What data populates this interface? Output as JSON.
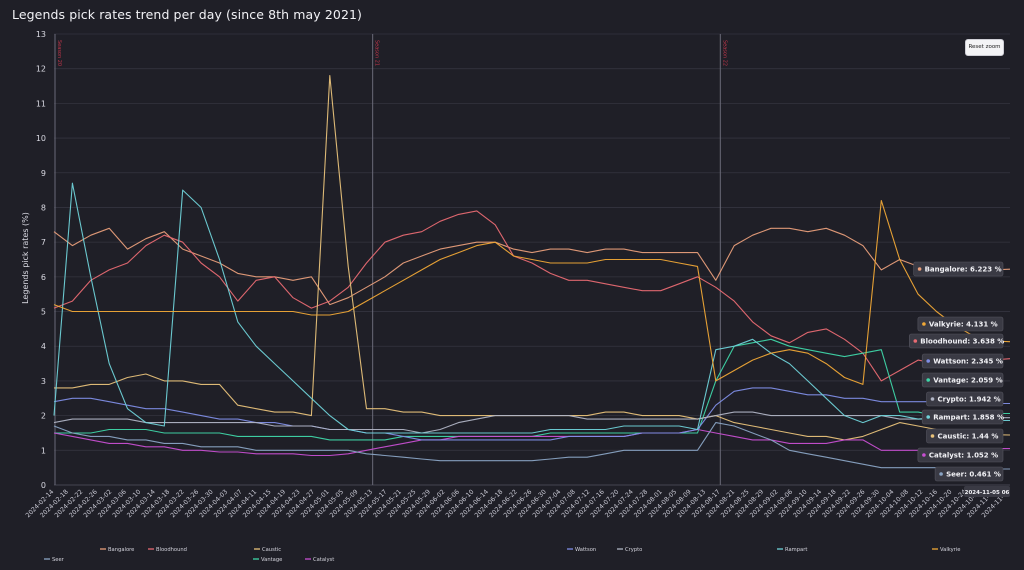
{
  "title": "Legends pick rates trend per day (since 8th may 2021)",
  "reset_zoom_label": "Reset zoom",
  "chart_data": {
    "type": "line",
    "ylabel": "Legends pick rates (%)",
    "ylim": [
      0,
      13
    ],
    "y_ticks": [
      0,
      1,
      2,
      3,
      4,
      5,
      6,
      7,
      8,
      9,
      10,
      11,
      12,
      13
    ],
    "grid": "horizontal",
    "x_ticks": [
      "2024-02-14",
      "2024-02-18",
      "2024-02-22",
      "2024-02-26",
      "2024-03-02",
      "2024-03-06",
      "2024-03-10",
      "2024-03-14",
      "2024-03-18",
      "2024-03-22",
      "2024-03-26",
      "2024-03-30",
      "2024-04-03",
      "2024-04-07",
      "2024-04-11",
      "2024-04-15",
      "2024-04-19",
      "2024-04-23",
      "2024-04-27",
      "2024-05-01",
      "2024-05-05",
      "2024-05-09",
      "2024-05-13",
      "2024-05-17",
      "2024-05-21",
      "2024-05-25",
      "2024-05-29",
      "2024-06-02",
      "2024-06-06",
      "2024-06-10",
      "2024-06-14",
      "2024-06-18",
      "2024-06-22",
      "2024-06-26",
      "2024-06-30",
      "2024-07-04",
      "2024-07-08",
      "2024-07-12",
      "2024-07-16",
      "2024-07-20",
      "2024-07-24",
      "2024-07-28",
      "2024-08-01",
      "2024-08-05",
      "2024-08-09",
      "2024-08-13",
      "2024-08-17",
      "2024-08-21",
      "2024-08-25",
      "2024-08-29",
      "2024-09-02",
      "2024-09-06",
      "2024-09-10",
      "2024-09-14",
      "2024-09-18",
      "2024-09-22",
      "2024-09-26",
      "2024-09-30",
      "2024-10-04",
      "2024-10-08",
      "2024-10-12",
      "2024-10-16",
      "2024-10-20",
      "2024-10-24",
      "2024-10-28",
      "2024-11-01",
      "2024-11-05"
    ],
    "x_hover_label": "2024-11-05 06",
    "season_markers": [
      {
        "label": "Season 20",
        "x_index": 0
      },
      {
        "label": "Season 21",
        "x_index": 22
      },
      {
        "label": "Season 22",
        "x_index": 46
      }
    ],
    "series": [
      {
        "name": "Bangalore",
        "color": "#e89e7a",
        "values": [
          7.3,
          6.9,
          7.2,
          7.4,
          6.8,
          7.1,
          7.3,
          6.8,
          6.6,
          6.4,
          6.1,
          6.0,
          6.0,
          5.9,
          6.0,
          5.2,
          5.4,
          5.7,
          6.0,
          6.4,
          6.6,
          6.8,
          6.9,
          7.0,
          7.0,
          6.8,
          6.7,
          6.8,
          6.8,
          6.7,
          6.8,
          6.8,
          6.7,
          6.7,
          6.7,
          6.7,
          5.9,
          6.9,
          7.2,
          7.4,
          7.4,
          7.3,
          7.4,
          7.2,
          6.9,
          6.2,
          6.5,
          6.3,
          6.3,
          6.2,
          6.2,
          6.2,
          6.22
        ]
      },
      {
        "name": "Bloodhound",
        "color": "#e86a72",
        "values": [
          5.1,
          5.3,
          5.9,
          6.2,
          6.4,
          6.9,
          7.2,
          7.0,
          6.4,
          6.0,
          5.3,
          5.9,
          6.0,
          5.4,
          5.1,
          5.3,
          5.7,
          6.4,
          7.0,
          7.2,
          7.3,
          7.6,
          7.8,
          7.9,
          7.5,
          6.6,
          6.4,
          6.1,
          5.9,
          5.9,
          5.8,
          5.7,
          5.6,
          5.6,
          5.8,
          6.0,
          5.7,
          5.3,
          4.7,
          4.3,
          4.1,
          4.4,
          4.5,
          4.2,
          3.8,
          3.0,
          3.3,
          3.6,
          3.5,
          3.4,
          3.5,
          3.6,
          3.64
        ]
      },
      {
        "name": "Caustic",
        "color": "#e8c27a",
        "values": [
          2.8,
          2.8,
          2.9,
          2.9,
          3.1,
          3.2,
          3.0,
          3.0,
          2.9,
          2.9,
          2.3,
          2.2,
          2.1,
          2.1,
          2.0,
          11.8,
          6.3,
          2.2,
          2.2,
          2.1,
          2.1,
          2.0,
          2.0,
          2.0,
          2.0,
          2.0,
          2.0,
          2.0,
          2.0,
          2.0,
          2.1,
          2.1,
          2.0,
          2.0,
          2.0,
          1.9,
          2.0,
          1.8,
          1.7,
          1.6,
          1.5,
          1.4,
          1.4,
          1.3,
          1.4,
          1.6,
          1.8,
          1.7,
          1.6,
          1.5,
          1.5,
          1.45,
          1.44
        ]
      },
      {
        "name": "Vantage",
        "color": "#3fd6a8",
        "values": [
          1.5,
          1.5,
          1.5,
          1.6,
          1.6,
          1.6,
          1.5,
          1.5,
          1.5,
          1.5,
          1.4,
          1.4,
          1.4,
          1.4,
          1.4,
          1.3,
          1.3,
          1.3,
          1.3,
          1.4,
          1.4,
          1.4,
          1.4,
          1.4,
          1.4,
          1.4,
          1.4,
          1.5,
          1.5,
          1.5,
          1.5,
          1.5,
          1.5,
          1.5,
          1.5,
          1.5,
          3.0,
          4.0,
          4.1,
          4.2,
          4.0,
          3.9,
          3.8,
          3.7,
          3.8,
          3.9,
          2.1,
          2.1,
          2.0,
          2.0,
          2.1,
          2.06,
          2.06
        ]
      },
      {
        "name": "Catalyst",
        "color": "#c84fd2",
        "values": [
          1.5,
          1.4,
          1.3,
          1.2,
          1.2,
          1.1,
          1.1,
          1.0,
          1.0,
          0.95,
          0.95,
          0.9,
          0.9,
          0.9,
          0.85,
          0.85,
          0.9,
          1.0,
          1.1,
          1.2,
          1.3,
          1.3,
          1.4,
          1.4,
          1.4,
          1.4,
          1.4,
          1.4,
          1.4,
          1.4,
          1.4,
          1.4,
          1.5,
          1.5,
          1.5,
          1.6,
          1.5,
          1.4,
          1.3,
          1.3,
          1.2,
          1.2,
          1.2,
          1.3,
          1.3,
          1.0,
          1.0,
          1.0,
          1.0,
          1.05,
          1.05,
          1.05,
          1.05
        ]
      },
      {
        "name": "Seer",
        "color": "#8aa4c4",
        "values": [
          1.7,
          1.5,
          1.4,
          1.4,
          1.3,
          1.3,
          1.2,
          1.2,
          1.1,
          1.1,
          1.1,
          1.0,
          1.0,
          1.0,
          1.0,
          1.0,
          1.0,
          0.9,
          0.85,
          0.8,
          0.75,
          0.7,
          0.7,
          0.7,
          0.7,
          0.7,
          0.7,
          0.75,
          0.8,
          0.8,
          0.9,
          1.0,
          1.0,
          1.0,
          1.0,
          1.0,
          1.8,
          1.7,
          1.5,
          1.3,
          1.0,
          0.9,
          0.8,
          0.7,
          0.6,
          0.5,
          0.5,
          0.5,
          0.5,
          0.46,
          0.46,
          0.46,
          0.46
        ]
      },
      {
        "name": "Wattson",
        "color": "#7f8ee6",
        "values": [
          2.4,
          2.5,
          2.5,
          2.4,
          2.3,
          2.2,
          2.2,
          2.1,
          2.0,
          1.9,
          1.9,
          1.8,
          1.8,
          1.7,
          1.7,
          1.6,
          1.6,
          1.5,
          1.5,
          1.4,
          1.3,
          1.3,
          1.3,
          1.3,
          1.3,
          1.3,
          1.3,
          1.3,
          1.4,
          1.4,
          1.4,
          1.4,
          1.5,
          1.5,
          1.5,
          1.6,
          2.3,
          2.7,
          2.8,
          2.8,
          2.7,
          2.6,
          2.6,
          2.5,
          2.5,
          2.4,
          2.4,
          2.4,
          2.4,
          2.35,
          2.35,
          2.35,
          2.35
        ]
      },
      {
        "name": "Crypto",
        "color": "#b0b4c4",
        "values": [
          1.8,
          1.9,
          1.9,
          1.9,
          1.9,
          1.8,
          1.8,
          1.8,
          1.8,
          1.8,
          1.8,
          1.8,
          1.7,
          1.7,
          1.7,
          1.6,
          1.6,
          1.6,
          1.6,
          1.6,
          1.5,
          1.6,
          1.8,
          1.9,
          2.0,
          2.0,
          2.0,
          2.0,
          2.0,
          1.9,
          1.9,
          1.9,
          1.9,
          1.9,
          1.9,
          1.9,
          2.0,
          2.1,
          2.1,
          2.0,
          2.0,
          2.0,
          2.0,
          2.0,
          2.0,
          2.0,
          1.9,
          1.9,
          1.95,
          1.94,
          1.94,
          1.94,
          1.94
        ]
      },
      {
        "name": "Rampart",
        "color": "#6fd2d8",
        "values": [
          2.0,
          8.7,
          6.0,
          3.5,
          2.2,
          1.8,
          1.7,
          8.5,
          8.0,
          6.5,
          4.7,
          4.0,
          3.5,
          3.0,
          2.5,
          2.0,
          1.6,
          1.5,
          1.5,
          1.5,
          1.5,
          1.5,
          1.5,
          1.5,
          1.5,
          1.5,
          1.5,
          1.6,
          1.6,
          1.6,
          1.6,
          1.7,
          1.7,
          1.7,
          1.7,
          1.6,
          3.9,
          4.0,
          4.2,
          3.8,
          3.5,
          3.0,
          2.5,
          2.0,
          1.8,
          2.0,
          2.0,
          1.9,
          1.9,
          1.86,
          1.86,
          1.86,
          1.86
        ]
      },
      {
        "name": "Valkyrie",
        "color": "#f0a836",
        "values": [
          5.2,
          5.0,
          5.0,
          5.0,
          5.0,
          5.0,
          5.0,
          5.0,
          5.0,
          5.0,
          5.0,
          5.0,
          5.0,
          5.0,
          4.9,
          4.9,
          5.0,
          5.3,
          5.6,
          5.9,
          6.2,
          6.5,
          6.7,
          6.9,
          7.0,
          6.6,
          6.5,
          6.4,
          6.4,
          6.4,
          6.5,
          6.5,
          6.5,
          6.5,
          6.4,
          6.3,
          3.0,
          3.3,
          3.6,
          3.8,
          3.9,
          3.8,
          3.5,
          3.1,
          2.9,
          8.2,
          6.5,
          5.5,
          5.0,
          4.6,
          4.3,
          4.15,
          4.13
        ]
      }
    ],
    "tooltips": [
      {
        "name": "Bangalore",
        "value": "6.223 %"
      },
      {
        "name": "Valkyrie",
        "value": "4.131 %"
      },
      {
        "name": "Bloodhound",
        "value": "3.638 %"
      },
      {
        "name": "Wattson",
        "value": "2.345 %"
      },
      {
        "name": "Vantage",
        "value": "2.059 %"
      },
      {
        "name": "Crypto",
        "value": "1.942 %"
      },
      {
        "name": "Rampart",
        "value": "1.858 %"
      },
      {
        "name": "Caustic",
        "value": "1.44 %"
      },
      {
        "name": "Catalyst",
        "value": "1.052 %"
      },
      {
        "name": "Seer",
        "value": "0.461 %"
      }
    ],
    "legend": {
      "position": "bottom",
      "items": [
        {
          "name": "Seer",
          "color": "#8aa4c4",
          "active": true
        },
        {
          "name": "Bangalore",
          "color": "#e89e7a",
          "active": true
        },
        {
          "name": "Bloodhound",
          "color": "#e86a72",
          "active": true
        },
        {
          "name": "Caustic",
          "color": "#e8c27a",
          "active": true
        },
        {
          "name": "Vantage",
          "color": "#3fd6a8",
          "active": true
        },
        {
          "name": "Catalyst",
          "color": "#c84fd2",
          "active": true
        },
        {
          "name": "Wattson",
          "color": "#7f8ee6",
          "active": true
        },
        {
          "name": "Crypto",
          "color": "#b0b4c4",
          "active": true
        },
        {
          "name": "Rampart",
          "color": "#6fd2d8",
          "active": true
        },
        {
          "name": "Valkyrie",
          "color": "#f0a836",
          "active": true
        }
      ]
    }
  }
}
